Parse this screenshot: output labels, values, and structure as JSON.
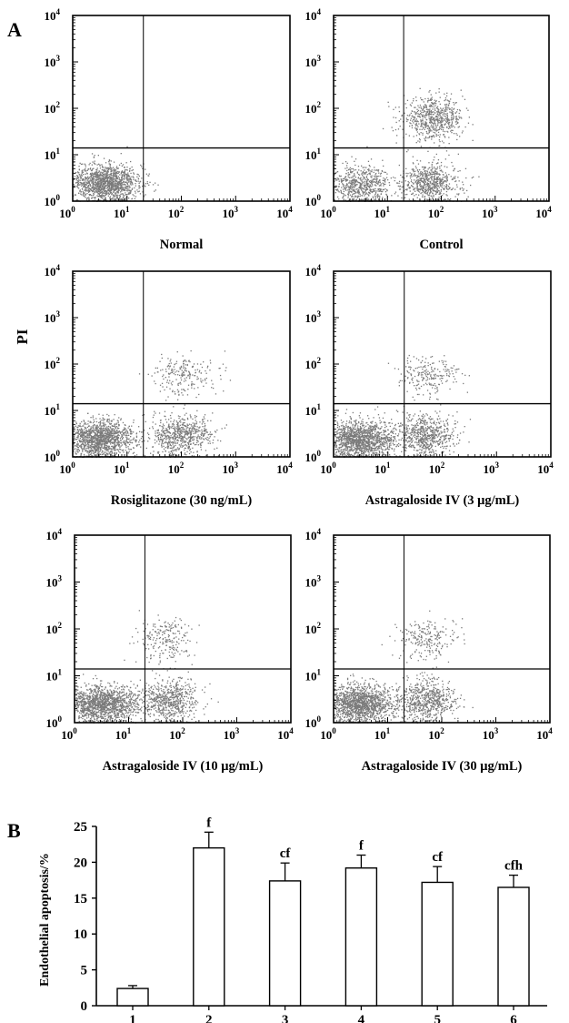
{
  "figure": {
    "panel_a_letter": "A",
    "panel_b_letter": "B",
    "shared_ylabel": "PI",
    "log_tick_base": "10",
    "log_tick_exponents": [
      "0",
      "1",
      "2",
      "3",
      "4"
    ]
  },
  "chart_data": [
    {
      "type": "scatter",
      "panel": "A",
      "title": "Normal",
      "xscale": "log",
      "yscale": "log",
      "xlim": [
        1,
        10000
      ],
      "ylim": [
        1,
        10000
      ],
      "x_gate": 20,
      "y_gate": 14,
      "clusters": [
        {
          "x": 4,
          "y": 2.5,
          "density": "high"
        }
      ]
    },
    {
      "type": "scatter",
      "panel": "A",
      "title": "Control",
      "xscale": "log",
      "yscale": "log",
      "xlim": [
        1,
        10000
      ],
      "ylim": [
        1,
        10000
      ],
      "x_gate": 20,
      "y_gate": 14,
      "clusters": [
        {
          "x": 3,
          "y": 2.2,
          "density": "medium"
        },
        {
          "x": 60,
          "y": 2.5,
          "density": "medium"
        },
        {
          "x": 70,
          "y": 60,
          "density": "medium"
        }
      ]
    },
    {
      "type": "scatter",
      "panel": "A",
      "title": "Rosiglitazone (30 ng/mL)",
      "xscale": "log",
      "yscale": "log",
      "xlim": [
        1,
        10000
      ],
      "ylim": [
        1,
        10000
      ],
      "x_gate": 20,
      "y_gate": 14,
      "clusters": [
        {
          "x": 3,
          "y": 2.5,
          "density": "high"
        },
        {
          "x": 100,
          "y": 3,
          "density": "medium"
        },
        {
          "x": 110,
          "y": 60,
          "density": "low"
        }
      ]
    },
    {
      "type": "scatter",
      "panel": "A",
      "title": "Astragaloside IV (3 μg/mL)",
      "xscale": "log",
      "yscale": "log",
      "xlim": [
        1,
        10000
      ],
      "ylim": [
        1,
        10000
      ],
      "x_gate": 20,
      "y_gate": 14,
      "clusters": [
        {
          "x": 3,
          "y": 2.5,
          "density": "high"
        },
        {
          "x": 50,
          "y": 3,
          "density": "medium"
        },
        {
          "x": 55,
          "y": 60,
          "density": "low"
        }
      ]
    },
    {
      "type": "scatter",
      "panel": "A",
      "title": "Astragaloside IV (10 μg/mL)",
      "xscale": "log",
      "yscale": "log",
      "xlim": [
        1,
        10000
      ],
      "ylim": [
        1,
        10000
      ],
      "x_gate": 20,
      "y_gate": 14,
      "clusters": [
        {
          "x": 3,
          "y": 2.5,
          "density": "high"
        },
        {
          "x": 50,
          "y": 3,
          "density": "medium"
        },
        {
          "x": 45,
          "y": 60,
          "density": "low"
        }
      ]
    },
    {
      "type": "scatter",
      "panel": "A",
      "title": "Astragaloside IV (30 μg/mL)",
      "xscale": "log",
      "yscale": "log",
      "xlim": [
        1,
        10000
      ],
      "ylim": [
        1,
        10000
      ],
      "x_gate": 20,
      "y_gate": 14,
      "clusters": [
        {
          "x": 3,
          "y": 2.5,
          "density": "high"
        },
        {
          "x": 50,
          "y": 3,
          "density": "medium"
        },
        {
          "x": 55,
          "y": 60,
          "density": "low"
        }
      ]
    },
    {
      "type": "bar",
      "panel": "B",
      "title": "",
      "xlabel": "",
      "ylabel": "Endothelial apoptosis/%",
      "ylim": [
        0,
        25
      ],
      "yticks": [
        0,
        5,
        10,
        15,
        20,
        25
      ],
      "categories": [
        "1",
        "2",
        "3",
        "4",
        "5",
        "6"
      ],
      "values": [
        2.4,
        22.0,
        17.4,
        19.2,
        17.2,
        16.5
      ],
      "error_upper": [
        2.8,
        24.2,
        19.9,
        21.0,
        19.4,
        18.2
      ],
      "annotations": [
        "",
        "f",
        "cf",
        "f",
        "cf",
        "cfh"
      ]
    }
  ]
}
